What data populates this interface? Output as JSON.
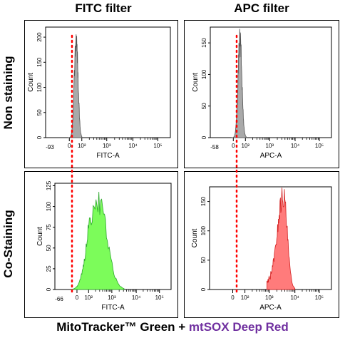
{
  "column_titles": [
    "FITC filter",
    "APC filter"
  ],
  "row_titles": [
    "Non staining",
    "Co-Staining"
  ],
  "footer": {
    "part1": "MitoTracker™ Green + ",
    "part2": "mtSOX Deep Red",
    "part2_color": "#7030a0"
  },
  "colors": {
    "gray_fill": "#a9a9a9",
    "green_fill": "#7cfc5a",
    "red_fill": "#ff7b7b",
    "dotted_line": "#ff0000"
  },
  "chart_data": [
    {
      "type": "area",
      "id": "fitc-non",
      "xlabel": "FITC-A",
      "ylabel": "Count",
      "x_min_label": "-93",
      "x_ticks": [
        "0",
        "10²",
        "10³",
        "10⁴",
        "10⁵"
      ],
      "y_ticks": [
        0,
        50,
        100,
        150,
        200
      ],
      "ylim": [
        0,
        220
      ],
      "fill": "gray",
      "peak_log": 1.55,
      "width_log": 0.15,
      "peak_count": 210
    },
    {
      "type": "area",
      "id": "apc-non",
      "xlabel": "APC-A",
      "ylabel": "Count",
      "x_min_label": "-58",
      "x_ticks": [
        "0",
        "10²",
        "10³",
        "10⁴",
        "10⁵"
      ],
      "y_ticks": [
        0,
        50,
        100,
        150
      ],
      "ylim": [
        0,
        175
      ],
      "fill": "gray",
      "peak_log": 1.55,
      "width_log": 0.16,
      "peak_count": 165
    },
    {
      "type": "area",
      "id": "fitc-co",
      "xlabel": "FITC-A",
      "ylabel": "Count",
      "x_min_label": "-66",
      "x_ticks": [
        "0",
        "10²",
        "10³",
        "10⁴",
        "10⁵"
      ],
      "y_ticks": [
        0,
        25,
        50,
        75,
        100,
        125
      ],
      "ylim": [
        0,
        128
      ],
      "fill": "green",
      "peak_log": 2.45,
      "width_log": 0.35,
      "peak_count": 110
    },
    {
      "type": "area",
      "id": "apc-co",
      "xlabel": "APC-A",
      "ylabel": "Count",
      "x_min_label": "",
      "x_ticks": [
        "0",
        "10²",
        "10³",
        "10⁴",
        "10⁵"
      ],
      "y_ticks": [
        0,
        50,
        100,
        150
      ],
      "ylim": [
        0,
        175
      ],
      "fill": "red",
      "peak_log": 3.55,
      "width_log": 0.15,
      "peak_count": 170
    }
  ]
}
